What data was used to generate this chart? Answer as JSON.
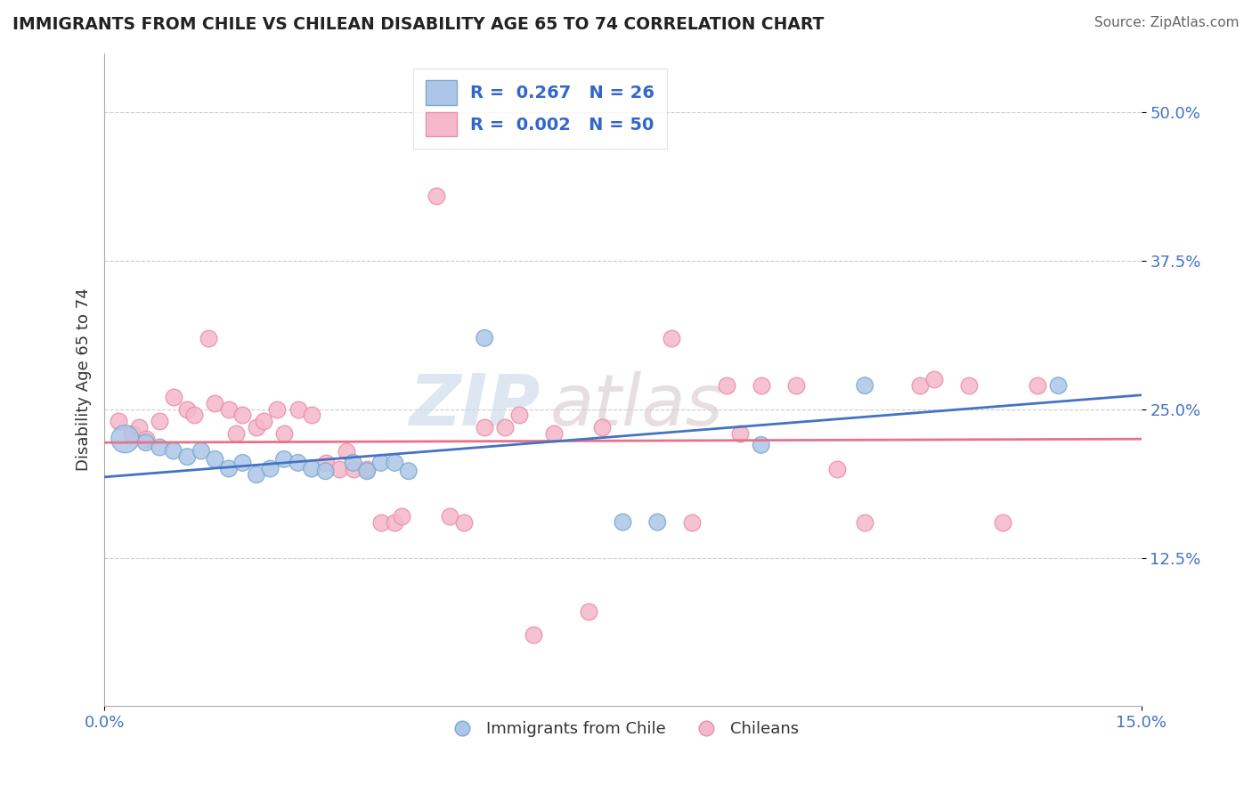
{
  "title": "IMMIGRANTS FROM CHILE VS CHILEAN DISABILITY AGE 65 TO 74 CORRELATION CHART",
  "source_text": "Source: ZipAtlas.com",
  "ylabel": "Disability Age 65 to 74",
  "xlim": [
    0.0,
    0.15
  ],
  "ylim": [
    0.0,
    0.55
  ],
  "xtick_positions": [
    0.0,
    0.15
  ],
  "xtick_labels": [
    "0.0%",
    "15.0%"
  ],
  "ytick_positions": [
    0.125,
    0.25,
    0.375,
    0.5
  ],
  "ytick_labels": [
    "12.5%",
    "25.0%",
    "37.5%",
    "50.0%"
  ],
  "legend1_label": "Immigrants from Chile",
  "legend2_label": "Chileans",
  "r1": 0.267,
  "n1": 26,
  "r2": 0.002,
  "n2": 50,
  "color_blue": "#adc6e8",
  "color_pink": "#f5b8cb",
  "line_blue": "#4472c4",
  "line_pink": "#e8718a",
  "watermark_zip": "ZIP",
  "watermark_atlas": "atlas",
  "blue_intercept": 0.193,
  "blue_slope": 0.46,
  "pink_intercept": 0.222,
  "pink_slope": 0.02,
  "blue_points": [
    [
      0.003,
      0.225
    ],
    [
      0.006,
      0.222
    ],
    [
      0.008,
      0.218
    ],
    [
      0.01,
      0.215
    ],
    [
      0.012,
      0.21
    ],
    [
      0.014,
      0.215
    ],
    [
      0.016,
      0.208
    ],
    [
      0.018,
      0.2
    ],
    [
      0.02,
      0.205
    ],
    [
      0.022,
      0.195
    ],
    [
      0.024,
      0.2
    ],
    [
      0.026,
      0.208
    ],
    [
      0.028,
      0.205
    ],
    [
      0.03,
      0.2
    ],
    [
      0.032,
      0.198
    ],
    [
      0.036,
      0.205
    ],
    [
      0.038,
      0.198
    ],
    [
      0.04,
      0.205
    ],
    [
      0.042,
      0.205
    ],
    [
      0.044,
      0.198
    ],
    [
      0.055,
      0.31
    ],
    [
      0.075,
      0.155
    ],
    [
      0.08,
      0.155
    ],
    [
      0.095,
      0.22
    ],
    [
      0.11,
      0.27
    ],
    [
      0.138,
      0.27
    ]
  ],
  "pink_points": [
    [
      0.002,
      0.24
    ],
    [
      0.004,
      0.23
    ],
    [
      0.005,
      0.235
    ],
    [
      0.006,
      0.225
    ],
    [
      0.008,
      0.24
    ],
    [
      0.01,
      0.26
    ],
    [
      0.012,
      0.25
    ],
    [
      0.013,
      0.245
    ],
    [
      0.015,
      0.31
    ],
    [
      0.016,
      0.255
    ],
    [
      0.018,
      0.25
    ],
    [
      0.019,
      0.23
    ],
    [
      0.02,
      0.245
    ],
    [
      0.022,
      0.235
    ],
    [
      0.023,
      0.24
    ],
    [
      0.025,
      0.25
    ],
    [
      0.026,
      0.23
    ],
    [
      0.028,
      0.25
    ],
    [
      0.03,
      0.245
    ],
    [
      0.032,
      0.205
    ],
    [
      0.034,
      0.2
    ],
    [
      0.035,
      0.215
    ],
    [
      0.036,
      0.2
    ],
    [
      0.038,
      0.2
    ],
    [
      0.04,
      0.155
    ],
    [
      0.042,
      0.155
    ],
    [
      0.043,
      0.16
    ],
    [
      0.048,
      0.43
    ],
    [
      0.05,
      0.16
    ],
    [
      0.052,
      0.155
    ],
    [
      0.055,
      0.235
    ],
    [
      0.058,
      0.235
    ],
    [
      0.06,
      0.245
    ],
    [
      0.062,
      0.06
    ],
    [
      0.065,
      0.23
    ],
    [
      0.07,
      0.08
    ],
    [
      0.072,
      0.235
    ],
    [
      0.082,
      0.31
    ],
    [
      0.085,
      0.155
    ],
    [
      0.09,
      0.27
    ],
    [
      0.092,
      0.23
    ],
    [
      0.095,
      0.27
    ],
    [
      0.1,
      0.27
    ],
    [
      0.106,
      0.2
    ],
    [
      0.11,
      0.155
    ],
    [
      0.118,
      0.27
    ],
    [
      0.12,
      0.275
    ],
    [
      0.125,
      0.27
    ],
    [
      0.13,
      0.155
    ],
    [
      0.135,
      0.27
    ]
  ]
}
